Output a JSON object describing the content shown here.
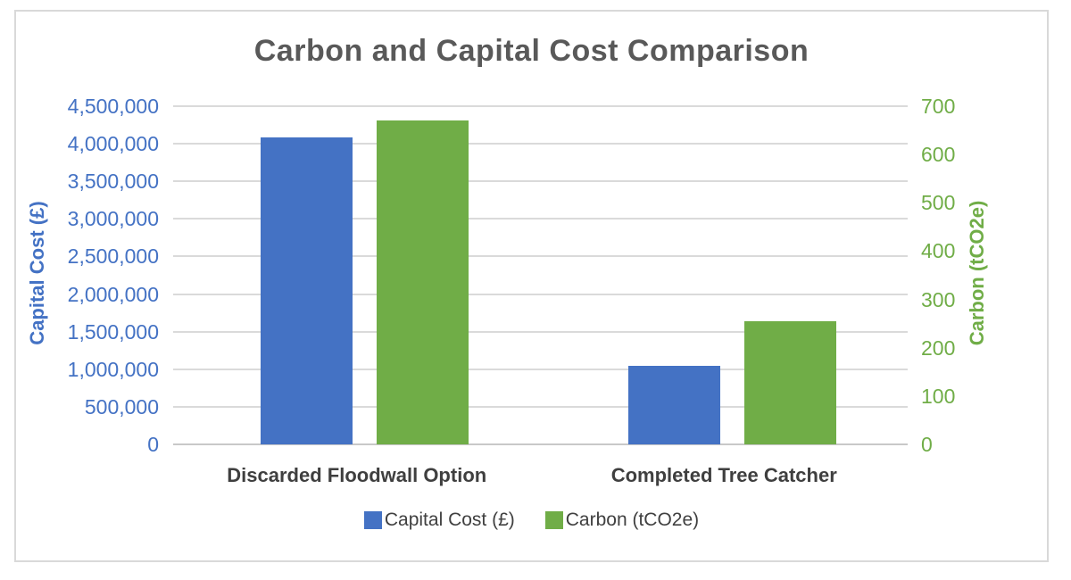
{
  "chart_data": {
    "type": "bar",
    "title": "Carbon and Capital Cost Comparison",
    "categories": [
      "Discarded Floodwall Option",
      "Completed Tree Catcher"
    ],
    "series": [
      {
        "name": "Capital Cost (£)",
        "axis": "left",
        "color": "#4472C4",
        "values": [
          4090000,
          1040000
        ]
      },
      {
        "name": "Carbon (tCO2e)",
        "axis": "right",
        "color": "#70AD47",
        "values": [
          670,
          255
        ]
      }
    ],
    "left_axis": {
      "title": "Capital Cost (£)",
      "color": "#4472C4",
      "min": 0,
      "max": 4500000,
      "step": 500000,
      "tick_labels": [
        "4,500,000",
        "4,000,000",
        "3,500,000",
        "3,000,000",
        "2,500,000",
        "2,000,000",
        "1,500,000",
        "1,000,000",
        "500,000",
        "0"
      ]
    },
    "right_axis": {
      "title": "Carbon (tCO2e)",
      "color": "#70AD47",
      "min": 0,
      "max": 700,
      "step": 100,
      "tick_labels": [
        "700",
        "600",
        "500",
        "400",
        "300",
        "200",
        "100",
        "0"
      ]
    },
    "legend": {
      "position": "bottom",
      "entries": [
        {
          "label": "Capital Cost (£)",
          "color": "#4472C4"
        },
        {
          "label": "Carbon (tCO2e)",
          "color": "#70AD47"
        }
      ]
    },
    "grid": true,
    "colors": {
      "title_text": "#595959",
      "category_text": "#3F3F3F",
      "gridline": "#DADADA",
      "frame_border": "#D9D9D9",
      "background": "#FFFFFF"
    }
  }
}
